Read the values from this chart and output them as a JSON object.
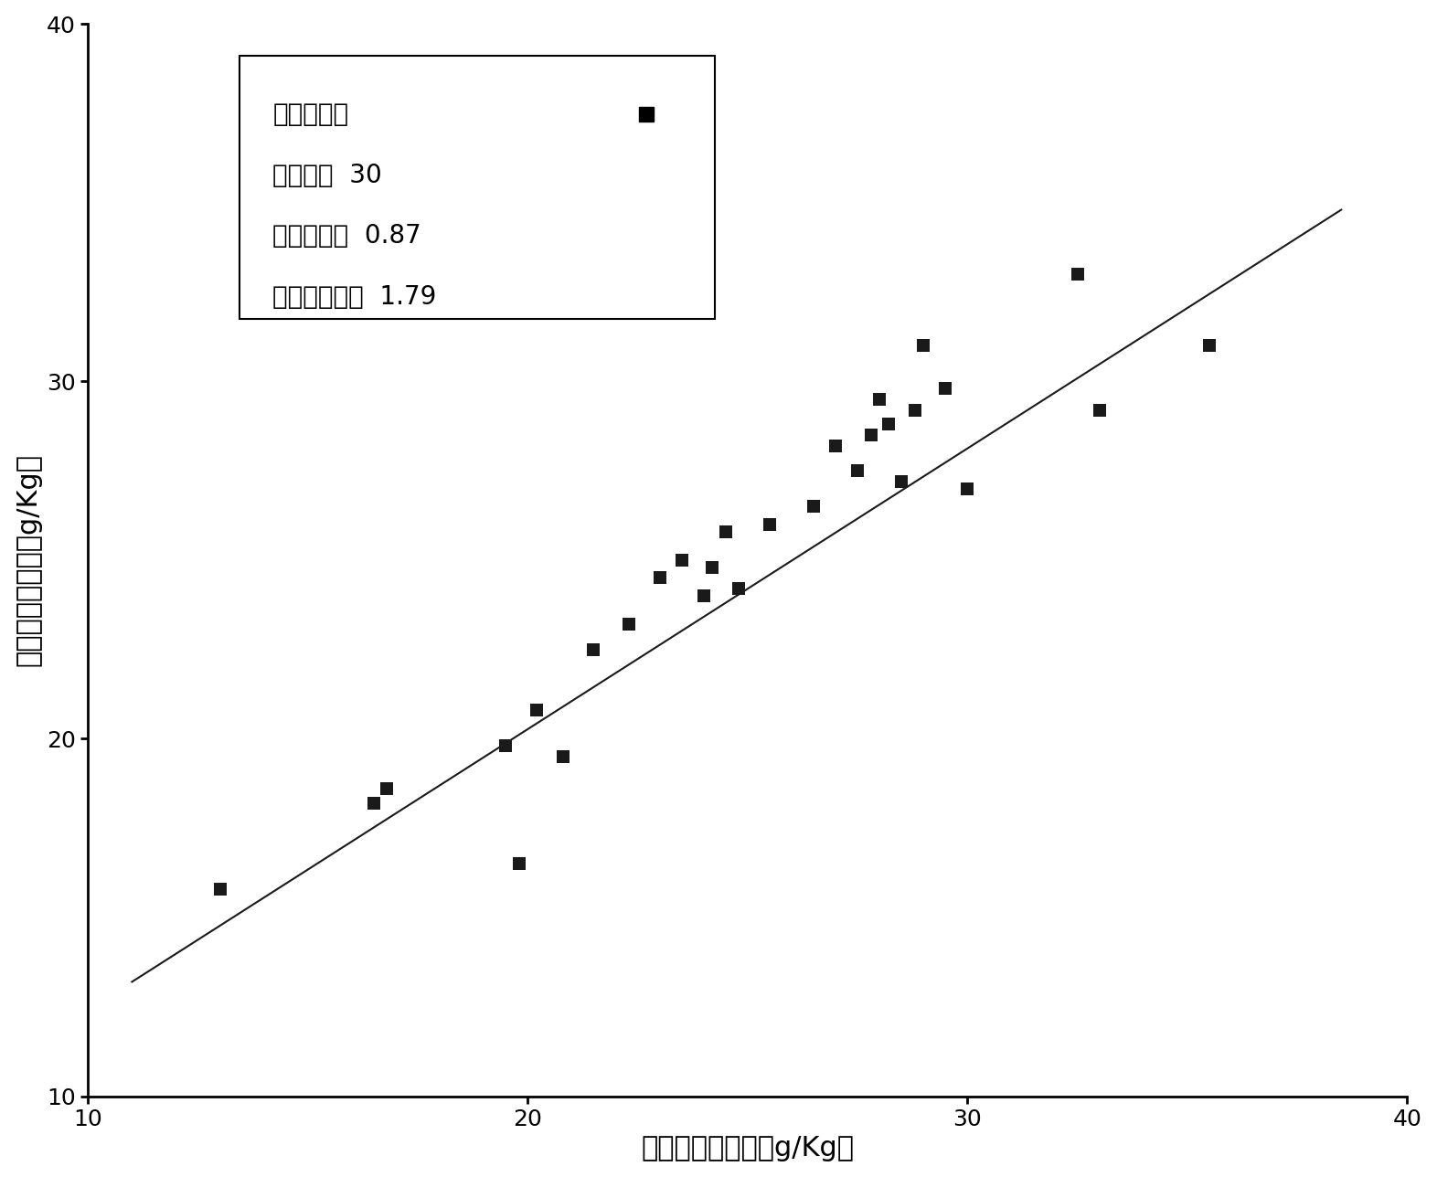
{
  "scatter_x": [
    13.0,
    16.5,
    16.8,
    19.5,
    19.8,
    20.2,
    20.8,
    21.5,
    22.3,
    23.0,
    23.5,
    24.0,
    24.2,
    24.5,
    24.8,
    25.5,
    26.5,
    27.0,
    27.5,
    27.8,
    28.0,
    28.2,
    28.5,
    28.8,
    29.0,
    29.5,
    30.0,
    32.5,
    33.0,
    35.5
  ],
  "scatter_y": [
    15.8,
    18.2,
    18.6,
    19.8,
    16.5,
    20.8,
    19.5,
    22.5,
    23.2,
    24.5,
    25.0,
    24.0,
    24.8,
    25.8,
    24.2,
    26.0,
    26.5,
    28.2,
    27.5,
    28.5,
    29.5,
    28.8,
    27.2,
    29.2,
    31.0,
    29.8,
    27.0,
    33.0,
    29.2,
    31.0
  ],
  "line_x": [
    11.0,
    38.5
  ],
  "line_y": [
    13.2,
    34.8
  ],
  "xlabel": "实际有机质含量（g/Kg）",
  "ylabel": "检测有机质含量（g/Kg）",
  "xlim": [
    10,
    40
  ],
  "ylim": [
    10,
    40
  ],
  "xticks": [
    10,
    20,
    30,
    40
  ],
  "yticks": [
    10,
    20,
    30,
    40
  ],
  "legend_line1": "预测样本：",
  "legend_line2": "样本数：  30",
  "legend_line3": "决定系数：  0.87",
  "legend_line4": "均方根误差：  1.79",
  "marker_color": "#1a1a1a",
  "line_color": "#1a1a1a",
  "bg_color": "#ffffff",
  "marker_size": 10,
  "line_width": 1.5,
  "font_size_label": 22,
  "font_size_tick": 18,
  "font_size_legend": 20
}
